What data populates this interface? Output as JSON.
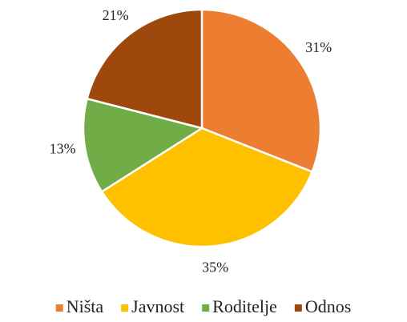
{
  "chart_data": {
    "type": "pie",
    "categories": [
      "Ništa",
      "Javnost",
      "Roditelje",
      "Odnos"
    ],
    "values": [
      31,
      35,
      13,
      21
    ],
    "value_labels": [
      "31%",
      "35%",
      "13%",
      "21%"
    ],
    "colors": [
      "#ed7d31",
      "#ffc000",
      "#70ad47",
      "#9e480e"
    ],
    "legend": "bottom"
  }
}
